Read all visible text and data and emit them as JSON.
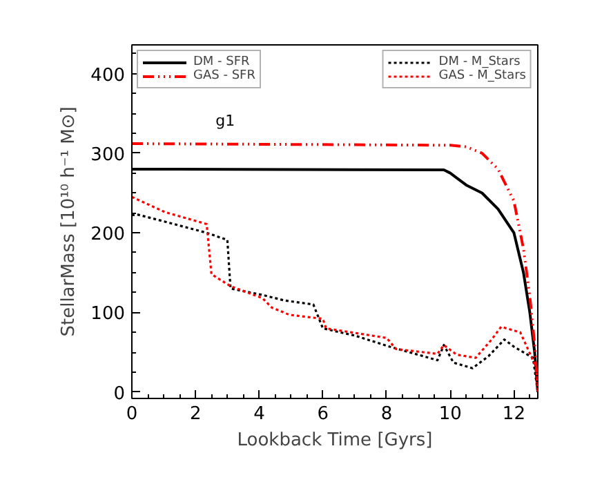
{
  "chart_data": {
    "type": "line",
    "xlabel": "Lookback Time [Gyrs]",
    "ylabel": "StellarMass [10¹⁰ h⁻¹ M⊙]",
    "annotations": [
      "g1"
    ],
    "xlim": [
      0,
      12.75
    ],
    "ylim": [
      -8,
      436
    ],
    "xticks": [
      0,
      2,
      4,
      6,
      8,
      10,
      12
    ],
    "yticks": [
      0,
      100,
      200,
      300,
      400
    ],
    "legend": "top",
    "grid": false,
    "series": [
      {
        "name": "DM - SFR",
        "color": "#000000",
        "line_style": "solid",
        "x": [
          0,
          9.8,
          10.0,
          10.5,
          11.0,
          11.5,
          12.0,
          12.3,
          12.5,
          12.65,
          12.75
        ],
        "values": [
          280,
          279,
          275,
          260,
          250,
          230,
          200,
          150,
          100,
          50,
          0
        ]
      },
      {
        "name": "GAS - SFR",
        "color": "#ff0000",
        "line_style": "dashdot",
        "x": [
          0,
          10.0,
          10.5,
          11.0,
          11.5,
          12.0,
          12.3,
          12.5,
          12.65,
          12.75
        ],
        "values": [
          312,
          310,
          308,
          300,
          280,
          240,
          180,
          120,
          60,
          0
        ]
      },
      {
        "name": "DM - M_Stars",
        "color": "#000000",
        "line_style": "dotted",
        "x": [
          0,
          0.17,
          1.04,
          2.35,
          3.0,
          3.1,
          4.1,
          4.8,
          5.7,
          6.0,
          7.0,
          8.1,
          9.6,
          9.8,
          10.1,
          10.7,
          11.2,
          11.7,
          12.0,
          12.6,
          12.75
        ],
        "values": [
          222,
          223,
          214,
          200,
          191,
          130,
          122,
          115,
          110,
          80,
          71,
          57,
          40,
          59,
          37,
          30,
          45,
          66,
          57,
          43,
          0
        ]
      },
      {
        "name": "GAS - M_Stars",
        "color": "#ff0000",
        "line_style": "dotted",
        "x": [
          0,
          1.04,
          2.35,
          2.5,
          3.1,
          4.1,
          4.4,
          4.95,
          6.0,
          6.1,
          8.0,
          8.3,
          9.6,
          9.8,
          10.2,
          10.8,
          11.3,
          11.6,
          12.2,
          12.7,
          12.75
        ],
        "values": [
          245,
          226,
          211,
          148,
          133,
          118,
          106,
          97,
          92,
          80,
          68,
          54,
          48,
          59,
          47,
          43,
          66,
          82,
          75,
          31,
          0
        ]
      }
    ]
  }
}
